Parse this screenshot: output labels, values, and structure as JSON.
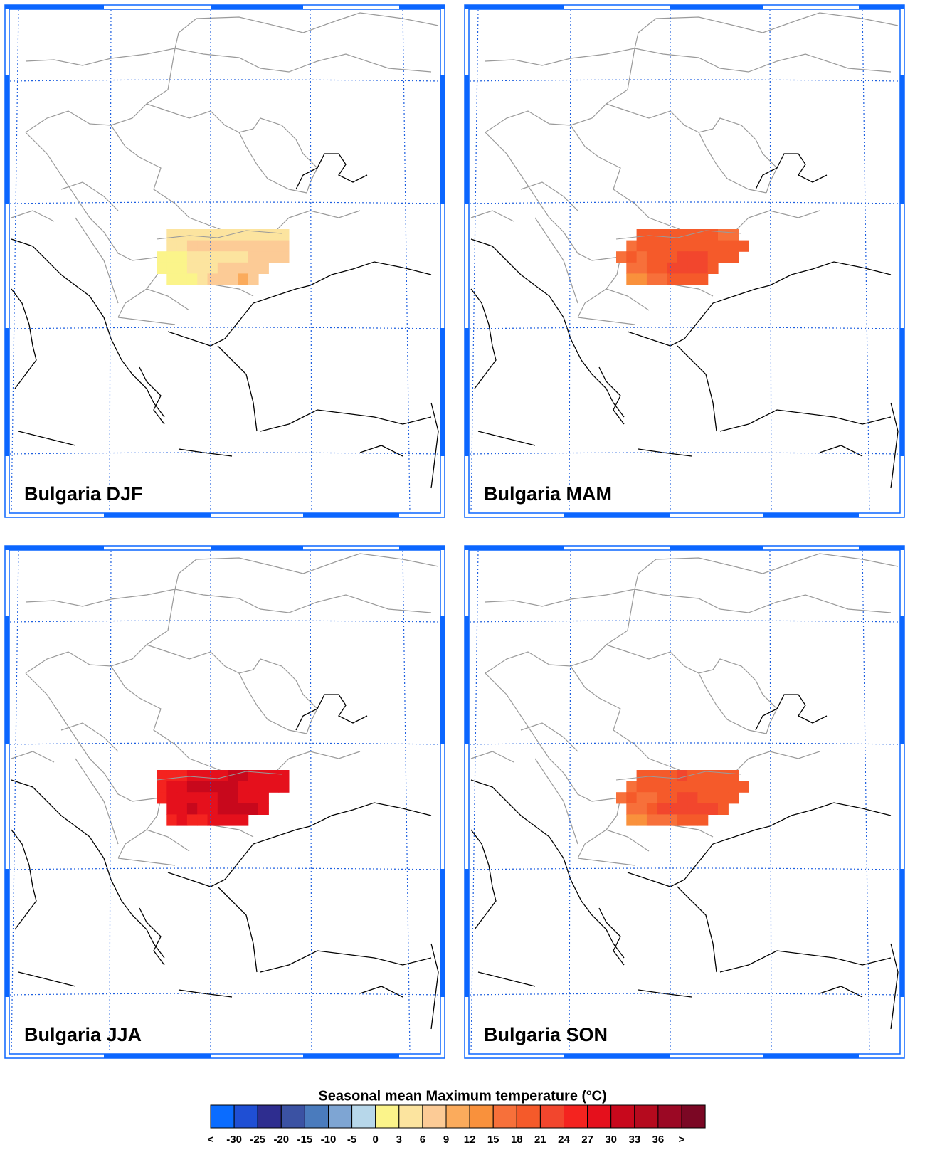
{
  "legend": {
    "title_prefix": "Seasonal mean Maximum temperature (",
    "title_sup": "o",
    "title_suffix": "C)",
    "labels": [
      "<",
      "-30",
      "-25",
      "-20",
      "-15",
      "-10",
      "-5",
      "0",
      "3",
      "6",
      "9",
      "12",
      "15",
      "18",
      "21",
      "24",
      "27",
      "30",
      "33",
      "36",
      ">"
    ],
    "colors": [
      "#0a6cff",
      "#1f4fd4",
      "#2e2d8f",
      "#3b52a3",
      "#4a7bbd",
      "#7ea5d3",
      "#b7d7ea",
      "#fbf48a",
      "#fce49f",
      "#fccb96",
      "#fbab5c",
      "#f9913c",
      "#f7703a",
      "#f55a2a",
      "#f2462d",
      "#f4231f",
      "#e5101c",
      "#c8081c",
      "#b50a1e",
      "#9b0824",
      "#7b0724"
    ]
  },
  "panels": [
    {
      "label": "Bulgaria DJF",
      "season": "DJF"
    },
    {
      "label": "Bulgaria MAM",
      "season": "MAM"
    },
    {
      "label": "Bulgaria JJA",
      "season": "JJA"
    },
    {
      "label": "Bulgaria SON",
      "season": "SON"
    }
  ],
  "colors": {
    "frame": "#0b66ff",
    "graticule": "#1d5fe0",
    "borders": "#9a9a9a",
    "coast": "#000000"
  }
}
